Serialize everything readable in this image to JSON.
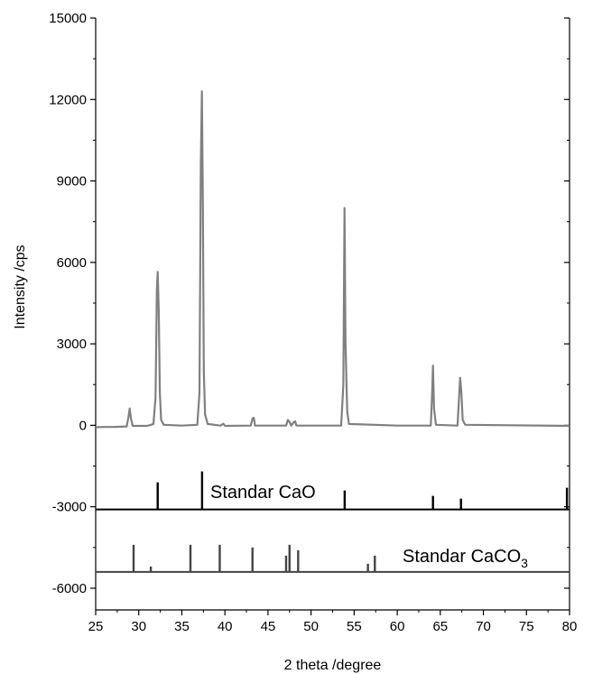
{
  "chart_data": {
    "type": "line",
    "xlabel": "2 theta /degree",
    "ylabel": "Intensity /cps",
    "xlim": [
      25,
      80
    ],
    "ylim": [
      -6800,
      15000
    ],
    "x_ticks": [
      25,
      30,
      35,
      40,
      45,
      50,
      55,
      60,
      65,
      70,
      75,
      80
    ],
    "y_ticks": [
      -6000,
      -3000,
      0,
      3000,
      6000,
      9000,
      12000,
      15000
    ],
    "grid": false,
    "series": [
      {
        "name": "",
        "color": "#808080",
        "points": [
          [
            25.0,
            -70
          ],
          [
            26.0,
            -60
          ],
          [
            27.0,
            -60
          ],
          [
            28.0,
            -50
          ],
          [
            28.6,
            -40
          ],
          [
            28.8,
            300
          ],
          [
            28.95,
            620
          ],
          [
            29.1,
            250
          ],
          [
            29.3,
            -20
          ],
          [
            31.0,
            -20
          ],
          [
            31.7,
            50
          ],
          [
            31.95,
            1000
          ],
          [
            32.1,
            5000
          ],
          [
            32.2,
            5650
          ],
          [
            32.32,
            4200
          ],
          [
            32.45,
            1200
          ],
          [
            32.6,
            200
          ],
          [
            32.9,
            20
          ],
          [
            35.0,
            -10
          ],
          [
            36.8,
            20
          ],
          [
            37.05,
            1200
          ],
          [
            37.2,
            9600
          ],
          [
            37.33,
            12300
          ],
          [
            37.45,
            8000
          ],
          [
            37.55,
            2000
          ],
          [
            37.7,
            400
          ],
          [
            38.0,
            50
          ],
          [
            39.5,
            -10
          ],
          [
            39.8,
            60
          ],
          [
            40.0,
            -20
          ],
          [
            43.0,
            -10
          ],
          [
            43.2,
            250
          ],
          [
            43.35,
            280
          ],
          [
            43.5,
            -10
          ],
          [
            47.1,
            -10
          ],
          [
            47.3,
            200
          ],
          [
            47.45,
            150
          ],
          [
            47.7,
            -10
          ],
          [
            48.0,
            120
          ],
          [
            48.15,
            150
          ],
          [
            48.3,
            -10
          ],
          [
            53.5,
            -10
          ],
          [
            53.75,
            1500
          ],
          [
            53.88,
            8000
          ],
          [
            54.0,
            3000
          ],
          [
            54.2,
            500
          ],
          [
            54.4,
            50
          ],
          [
            60.0,
            -10
          ],
          [
            63.9,
            -10
          ],
          [
            64.05,
            1200
          ],
          [
            64.15,
            2200
          ],
          [
            64.28,
            600
          ],
          [
            64.5,
            20
          ],
          [
            67.0,
            -10
          ],
          [
            67.3,
            1750
          ],
          [
            67.45,
            1200
          ],
          [
            67.6,
            200
          ],
          [
            67.9,
            20
          ],
          [
            80.0,
            -20
          ]
        ]
      }
    ],
    "references": [
      {
        "label": "Standar CaO",
        "baseline": -3100,
        "color": "#000000",
        "sticks": [
          [
            32.2,
            -2100
          ],
          [
            37.35,
            -1700
          ],
          [
            53.9,
            -2400
          ],
          [
            64.15,
            -2600
          ],
          [
            67.4,
            -2700
          ],
          [
            79.7,
            -2300
          ]
        ]
      },
      {
        "label": "Standar CaCO",
        "label_subscript": "3",
        "baseline": -5400,
        "color": "#444444",
        "sticks": [
          [
            29.4,
            -4400
          ],
          [
            31.4,
            -5200
          ],
          [
            36.0,
            -4400
          ],
          [
            39.4,
            -4400
          ],
          [
            43.2,
            -4500
          ],
          [
            47.1,
            -4800
          ],
          [
            47.5,
            -4400
          ],
          [
            48.5,
            -4600
          ],
          [
            56.6,
            -5100
          ],
          [
            57.4,
            -4800
          ]
        ]
      }
    ]
  }
}
